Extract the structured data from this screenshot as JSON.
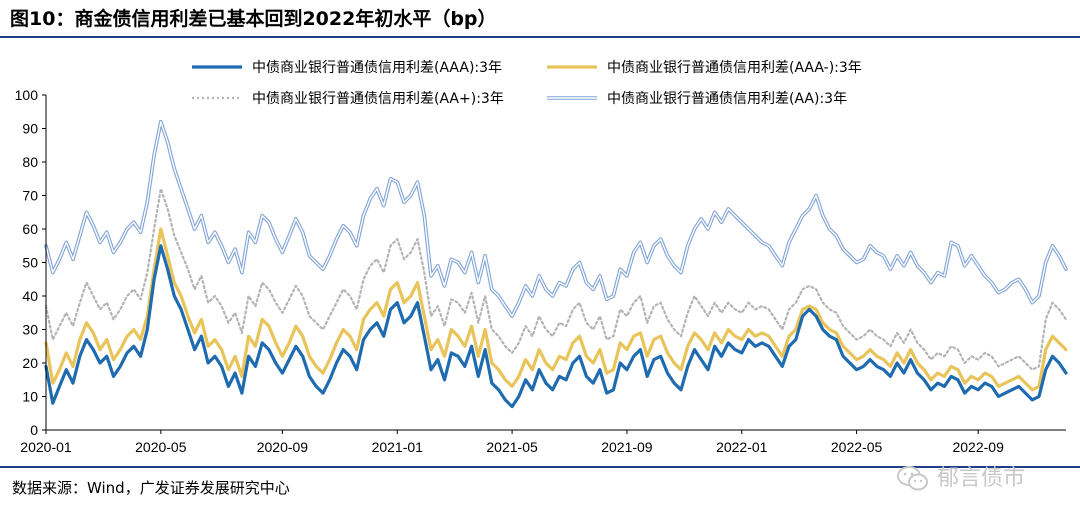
{
  "title": "图10：商金债信用利差已基本回到2022年初水平（bp）",
  "source": "数据来源：Wind，广发证券发展研究中心",
  "watermark": "郁言债市",
  "colors": {
    "aaa": "#1f6bb0",
    "aaa_minus": "#e8c45a",
    "aa_plus": "#b4b4b4",
    "aa": "#7fa3d6",
    "rule": "#1f3d8a"
  },
  "chart_data": {
    "type": "line",
    "title": "商金债信用利差已基本回到2022年初水平（bp）",
    "xlabel": "",
    "ylabel": "",
    "ylim": [
      0,
      100
    ],
    "yticks": [
      0,
      10,
      20,
      30,
      40,
      50,
      60,
      70,
      80,
      90,
      100
    ],
    "xlim_index": [
      0,
      151
    ],
    "xtick_labels": [
      "2020-01",
      "2020-05",
      "2020-09",
      "2021-01",
      "2021-05",
      "2021-09",
      "2022-01",
      "2022-05",
      "2022-09"
    ],
    "xtick_index": [
      0,
      17,
      35,
      52,
      69,
      86,
      103,
      120,
      138
    ],
    "x_unit": "weekly observations from 2020-01 to 2022-12",
    "legend_position": "top",
    "series": [
      {
        "name": "中债商业银行普通债信用利差(AAA):3年",
        "style": "solid",
        "values": [
          19,
          8,
          13,
          18,
          14,
          22,
          27,
          24,
          20,
          22,
          16,
          19,
          23,
          25,
          22,
          30,
          45,
          55,
          48,
          40,
          36,
          30,
          24,
          28,
          20,
          22,
          19,
          13,
          17,
          11,
          22,
          19,
          26,
          24,
          20,
          17,
          21,
          25,
          22,
          16,
          13,
          11,
          15,
          20,
          24,
          22,
          18,
          27,
          30,
          32,
          28,
          36,
          38,
          32,
          34,
          38,
          28,
          18,
          21,
          15,
          23,
          22,
          19,
          25,
          16,
          24,
          14,
          12,
          9,
          7,
          10,
          15,
          12,
          18,
          14,
          12,
          16,
          15,
          20,
          22,
          16,
          14,
          18,
          11,
          12,
          20,
          18,
          22,
          24,
          16,
          21,
          22,
          17,
          14,
          12,
          19,
          24,
          21,
          18,
          25,
          22,
          26,
          24,
          23,
          27,
          25,
          26,
          25,
          22,
          19,
          25,
          27,
          34,
          36,
          34,
          30,
          28,
          27,
          22,
          20,
          18,
          19,
          21,
          19,
          18,
          16,
          20,
          17,
          21,
          17,
          15,
          12,
          14,
          13,
          16,
          15,
          11,
          13,
          12,
          14,
          13,
          10,
          11,
          12,
          13,
          11,
          9,
          10,
          18,
          22,
          20,
          17
        ]
      },
      {
        "name": "中债商业银行普通债信用利差(AAA-):3年",
        "style": "solid",
        "values": [
          26,
          14,
          18,
          23,
          19,
          27,
          32,
          29,
          24,
          27,
          21,
          24,
          28,
          30,
          27,
          34,
          48,
          60,
          52,
          44,
          40,
          34,
          29,
          33,
          25,
          27,
          24,
          18,
          22,
          16,
          28,
          25,
          33,
          31,
          26,
          22,
          26,
          31,
          28,
          22,
          19,
          17,
          21,
          26,
          30,
          28,
          24,
          33,
          36,
          38,
          34,
          42,
          44,
          38,
          40,
          44,
          34,
          24,
          27,
          22,
          30,
          28,
          25,
          31,
          22,
          30,
          20,
          18,
          15,
          13,
          16,
          21,
          18,
          24,
          20,
          18,
          22,
          21,
          26,
          28,
          22,
          20,
          24,
          17,
          18,
          26,
          24,
          28,
          29,
          22,
          27,
          28,
          23,
          20,
          18,
          25,
          29,
          27,
          24,
          29,
          26,
          30,
          28,
          27,
          30,
          28,
          29,
          28,
          25,
          22,
          28,
          30,
          36,
          37,
          36,
          32,
          30,
          29,
          25,
          23,
          21,
          22,
          24,
          22,
          21,
          19,
          23,
          20,
          24,
          20,
          18,
          15,
          17,
          16,
          19,
          18,
          14,
          16,
          15,
          17,
          16,
          13,
          14,
          15,
          16,
          14,
          12,
          13,
          24,
          28,
          26,
          24
        ]
      },
      {
        "name": "中债商业银行普通债信用利差(AA+):3年",
        "style": "dotted",
        "values": [
          37,
          27,
          31,
          35,
          31,
          38,
          44,
          40,
          36,
          38,
          33,
          36,
          40,
          42,
          39,
          47,
          60,
          72,
          66,
          58,
          53,
          48,
          42,
          46,
          38,
          40,
          37,
          32,
          35,
          29,
          40,
          37,
          44,
          42,
          38,
          35,
          39,
          43,
          40,
          34,
          32,
          30,
          34,
          38,
          42,
          40,
          36,
          45,
          49,
          51,
          47,
          55,
          57,
          51,
          53,
          57,
          47,
          34,
          37,
          31,
          39,
          38,
          35,
          41,
          32,
          40,
          30,
          28,
          25,
          23,
          26,
          31,
          28,
          34,
          30,
          28,
          32,
          31,
          36,
          38,
          32,
          30,
          34,
          27,
          28,
          36,
          34,
          38,
          40,
          32,
          37,
          38,
          33,
          30,
          28,
          35,
          40,
          37,
          34,
          38,
          35,
          38,
          36,
          35,
          38,
          36,
          37,
          36,
          33,
          30,
          36,
          38,
          42,
          43,
          42,
          38,
          36,
          35,
          31,
          29,
          27,
          28,
          30,
          28,
          27,
          25,
          29,
          26,
          30,
          26,
          24,
          21,
          23,
          22,
          25,
          24,
          20,
          22,
          21,
          23,
          22,
          19,
          20,
          21,
          22,
          20,
          18,
          19,
          33,
          38,
          36,
          33
        ]
      },
      {
        "name": "中债商业银行普通债信用利差(AA):3年",
        "style": "double",
        "values": [
          55,
          47,
          51,
          56,
          51,
          58,
          65,
          61,
          56,
          59,
          53,
          56,
          60,
          62,
          59,
          68,
          82,
          92,
          86,
          78,
          72,
          66,
          60,
          64,
          56,
          59,
          55,
          50,
          54,
          47,
          59,
          56,
          64,
          62,
          57,
          53,
          58,
          63,
          59,
          52,
          50,
          48,
          52,
          57,
          61,
          59,
          55,
          64,
          69,
          72,
          67,
          75,
          74,
          68,
          70,
          74,
          64,
          46,
          49,
          43,
          51,
          50,
          47,
          53,
          44,
          52,
          42,
          40,
          37,
          34,
          38,
          43,
          40,
          46,
          42,
          40,
          44,
          43,
          48,
          50,
          44,
          42,
          46,
          39,
          40,
          48,
          46,
          53,
          56,
          50,
          55,
          57,
          52,
          49,
          47,
          55,
          60,
          63,
          60,
          65,
          62,
          66,
          64,
          62,
          60,
          58,
          56,
          55,
          52,
          49,
          56,
          60,
          64,
          66,
          70,
          64,
          60,
          58,
          54,
          52,
          50,
          51,
          55,
          53,
          52,
          48,
          52,
          49,
          53,
          49,
          47,
          44,
          47,
          46,
          56,
          55,
          49,
          52,
          49,
          46,
          44,
          41,
          42,
          44,
          45,
          42,
          38,
          40,
          50,
          55,
          52,
          48
        ]
      }
    ]
  }
}
